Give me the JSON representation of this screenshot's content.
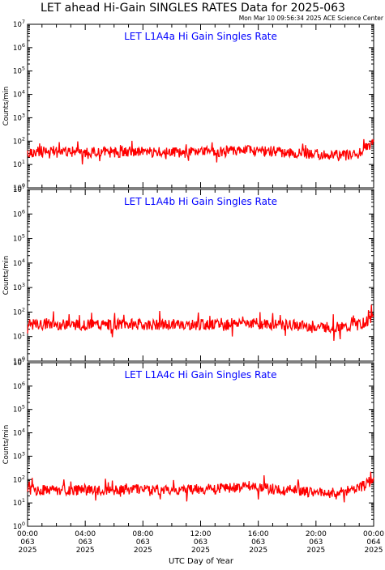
{
  "header": {
    "title": "LET ahead Hi-Gain SINGLES RATES Data for 2025-063",
    "timestamp": "Mon Mar 10 09:56:34 2025 ACE Science Center"
  },
  "colors": {
    "data_line": "#ff0000",
    "panel_title": "#0000ff",
    "axes": "#000000",
    "background": "#ffffff"
  },
  "chart_data": [
    {
      "type": "line",
      "title": "LET L1A4a Hi Gain Singles Rate",
      "ylabel": "Counts/min",
      "yscale": "log",
      "ylim": [
        1,
        10000000
      ],
      "y_ticks": [
        "10^0",
        "10^1",
        "10^2",
        "10^3",
        "10^4",
        "10^5",
        "10^6",
        "10^7"
      ],
      "xlim": [
        "2025-063 00:00",
        "2025-064 00:00"
      ],
      "x_hours": [
        0,
        1,
        2,
        3,
        4,
        5,
        6,
        7,
        8,
        9,
        10,
        11,
        12,
        13,
        14,
        15,
        16,
        17,
        18,
        19,
        20,
        21,
        22,
        23,
        24
      ],
      "values": [
        33,
        35,
        40,
        36,
        32,
        34,
        33,
        36,
        35,
        33,
        34,
        32,
        35,
        34,
        36,
        38,
        40,
        36,
        33,
        30,
        28,
        26,
        24,
        30,
        90
      ],
      "grid": false
    },
    {
      "type": "line",
      "title": "LET L1A4b Hi Gain Singles Rate",
      "ylabel": "Counts/min",
      "yscale": "log",
      "ylim": [
        1,
        10000000
      ],
      "y_ticks": [
        "10^0",
        "10^1",
        "10^2",
        "10^3",
        "10^4",
        "10^5",
        "10^6",
        "10^7"
      ],
      "xlim": [
        "2025-063 00:00",
        "2025-064 00:00"
      ],
      "x_hours": [
        0,
        1,
        2,
        3,
        4,
        5,
        6,
        7,
        8,
        9,
        10,
        11,
        12,
        13,
        14,
        15,
        16,
        17,
        18,
        19,
        20,
        21,
        22,
        23,
        24
      ],
      "values": [
        30,
        31,
        32,
        30,
        31,
        30,
        31,
        32,
        31,
        30,
        31,
        30,
        31,
        30,
        32,
        40,
        33,
        31,
        30,
        28,
        26,
        24,
        23,
        30,
        60
      ],
      "grid": false
    },
    {
      "type": "line",
      "title": "LET L1A4c Hi Gain Singles Rate",
      "ylabel": "Counts/min",
      "yscale": "log",
      "ylim": [
        1,
        10000000
      ],
      "y_ticks": [
        "10^0",
        "10^1",
        "10^2",
        "10^3",
        "10^4",
        "10^5",
        "10^6",
        "10^7"
      ],
      "xlim": [
        "2025-063 00:00",
        "2025-064 00:00"
      ],
      "x_hours": [
        0,
        1,
        2,
        3,
        4,
        5,
        6,
        7,
        8,
        9,
        10,
        11,
        12,
        13,
        14,
        15,
        16,
        17,
        18,
        19,
        20,
        21,
        22,
        23,
        24
      ],
      "values": [
        36,
        35,
        37,
        34,
        35,
        36,
        35,
        36,
        37,
        36,
        38,
        37,
        39,
        40,
        42,
        55,
        45,
        40,
        36,
        32,
        28,
        27,
        30,
        45,
        100
      ],
      "grid": false
    }
  ],
  "x_axis": {
    "tick_labels": [
      [
        "00:00",
        "063",
        "2025"
      ],
      [
        "04:00",
        "063",
        "2025"
      ],
      [
        "08:00",
        "063",
        "2025"
      ],
      [
        "12:00",
        "063",
        "2025"
      ],
      [
        "16:00",
        "063",
        "2025"
      ],
      [
        "20:00",
        "063",
        "2025"
      ],
      [
        "00:00",
        "064",
        "2025"
      ]
    ],
    "label": "UTC Day of Year"
  }
}
